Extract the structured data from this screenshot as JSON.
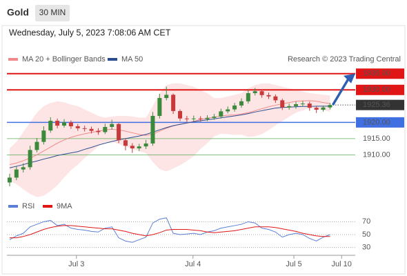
{
  "header": {
    "title": "Gold",
    "timeframe": "30 MIN",
    "timestamp": "Wednesday, July 5, 2023 7:08:06 AM CET"
  },
  "chart_data": [
    {
      "type": "candlestick",
      "attribution": "Research © 2023 Trading Central",
      "up_color": "#3b8a3b",
      "down_color": "#c83a3a",
      "band_color": "#fde0e0",
      "x": [
        0,
        1,
        2,
        3,
        4,
        5,
        6,
        7,
        8,
        9,
        10,
        11,
        12,
        13,
        14,
        15,
        16,
        17,
        18,
        19,
        20,
        21,
        22,
        23,
        24,
        25,
        26,
        27,
        28,
        29,
        30,
        31,
        32,
        33,
        34,
        35,
        36,
        37,
        38,
        39,
        40,
        41,
        42,
        43,
        44,
        45,
        46,
        47
      ],
      "open": [
        1901.5,
        1903.0,
        1905.5,
        1906.2,
        1911.5,
        1914.0,
        1917.5,
        1920.5,
        1919.0,
        1920.0,
        1918.8,
        1918.2,
        1918.0,
        1917.4,
        1917.0,
        1918.6,
        1919.5,
        1914.5,
        1912.8,
        1912.0,
        1912.6,
        1913.5,
        1922.0,
        1927.5,
        1928.5,
        1923.5,
        1921.2,
        1921.0,
        1921.2,
        1921.0,
        1921.4,
        1921.8,
        1923.4,
        1924.0,
        1925.2,
        1926.5,
        1929.0,
        1929.6,
        1928.4,
        1928.0,
        1926.8,
        1924.6,
        1925.0,
        1925.6,
        1925.8,
        1924.5,
        1923.9,
        1924.6
      ],
      "high": [
        1904.2,
        1906.6,
        1907.4,
        1912.8,
        1915.2,
        1918.8,
        1921.6,
        1921.2,
        1921.0,
        1920.6,
        1919.5,
        1919.0,
        1918.7,
        1918.2,
        1919.6,
        1920.8,
        1919.8,
        1915.2,
        1913.6,
        1913.4,
        1914.6,
        1923.2,
        1928.8,
        1931.0,
        1928.9,
        1924.0,
        1922.0,
        1922.1,
        1921.9,
        1922.2,
        1922.6,
        1924.2,
        1924.9,
        1926.0,
        1927.4,
        1930.0,
        1930.6,
        1930.2,
        1929.2,
        1928.6,
        1927.3,
        1925.8,
        1926.4,
        1926.6,
        1926.4,
        1924.9,
        1925.2,
        1926.0
      ],
      "low": [
        1900.3,
        1902.2,
        1904.6,
        1905.4,
        1910.8,
        1913.2,
        1916.8,
        1918.2,
        1918.4,
        1918.0,
        1917.4,
        1917.2,
        1916.6,
        1916.2,
        1916.4,
        1917.8,
        1913.6,
        1911.4,
        1910.6,
        1911.2,
        1911.8,
        1912.8,
        1921.2,
        1926.8,
        1922.6,
        1920.4,
        1920.2,
        1920.3,
        1920.2,
        1920.4,
        1920.8,
        1921.2,
        1922.8,
        1923.3,
        1924.5,
        1925.8,
        1928.3,
        1927.6,
        1927.2,
        1926.0,
        1923.8,
        1923.9,
        1924.2,
        1924.9,
        1923.6,
        1922.9,
        1923.3,
        1924.0
      ],
      "close": [
        1903.0,
        1905.5,
        1906.2,
        1911.5,
        1914.0,
        1917.5,
        1920.5,
        1919.0,
        1920.0,
        1918.8,
        1918.2,
        1918.0,
        1917.4,
        1917.0,
        1918.6,
        1919.5,
        1914.5,
        1912.8,
        1912.0,
        1912.6,
        1913.5,
        1922.0,
        1927.5,
        1928.5,
        1923.5,
        1921.2,
        1921.0,
        1921.2,
        1921.0,
        1921.4,
        1921.8,
        1923.4,
        1924.0,
        1925.2,
        1926.5,
        1929.0,
        1929.6,
        1928.4,
        1928.0,
        1926.8,
        1924.6,
        1925.0,
        1925.6,
        1925.8,
        1924.5,
        1923.9,
        1924.6,
        1925.36
      ],
      "series": [
        {
          "name": "MA 20 + Bollinger Bands",
          "color": "#f08a8a",
          "values": [
            1907.0,
            1907.5,
            1908.2,
            1909.0,
            1910.0,
            1911.2,
            1912.4,
            1913.6,
            1914.6,
            1915.4,
            1916.0,
            1916.5,
            1916.9,
            1917.3,
            1917.7,
            1917.9,
            1917.7,
            1917.3,
            1916.8,
            1916.3,
            1916.0,
            1916.4,
            1917.3,
            1918.2,
            1918.9,
            1919.4,
            1919.8,
            1920.3,
            1920.9,
            1921.3,
            1921.6,
            1922.0,
            1922.2,
            1922.3,
            1922.6,
            1923.0,
            1923.6,
            1924.2,
            1924.8,
            1925.3,
            1925.7,
            1926.1,
            1926.5,
            1926.6,
            1926.7,
            1926.5,
            1926.1,
            1925.8
          ],
          "upper": [
            1912,
            1914,
            1917,
            1920,
            1923,
            1925,
            1926,
            1926.5,
            1926.2,
            1925.5,
            1925,
            1924,
            1923,
            1922,
            1921.5,
            1921.8,
            1922,
            1922,
            1921.8,
            1921.5,
            1921.5,
            1925,
            1929,
            1931.5,
            1932,
            1932,
            1931.5,
            1931,
            1930,
            1929,
            1927.5,
            1927.5,
            1928,
            1928.5,
            1929,
            1930.5,
            1931.5,
            1932,
            1932,
            1931.5,
            1931,
            1930.5,
            1930,
            1929.5,
            1929,
            1928.8,
            1928.5,
            1928.3
          ],
          "lower": [
            1902,
            1901,
            1899.4,
            1898,
            1897,
            1897.4,
            1898.8,
            1900.7,
            1903,
            1905.3,
            1907,
            1909,
            1910.8,
            1912.6,
            1913.9,
            1914,
            1913.4,
            1912.6,
            1911.8,
            1911.1,
            1910.5,
            1907.8,
            1905.6,
            1904.9,
            1905.8,
            1906.8,
            1908.1,
            1909.6,
            1911.8,
            1913.6,
            1915.7,
            1916.5,
            1916.4,
            1916.1,
            1916.2,
            1915.5,
            1915.7,
            1916.4,
            1917.6,
            1919.1,
            1920.4,
            1921.7,
            1923.0,
            1923.7,
            1924.4,
            1924.2,
            1923.7,
            1923.3
          ]
        },
        {
          "name": "MA 50",
          "color": "#2a4d8f",
          "values": [
            1906.0,
            1906.5,
            1907.0,
            1907.6,
            1908.1,
            1908.7,
            1909.2,
            1909.8,
            1910.2,
            1910.6,
            1911.0,
            1911.7,
            1912.3,
            1913.0,
            1913.6,
            1914.1,
            1914.6,
            1915.0,
            1915.4,
            1915.8,
            1916.3,
            1917.0,
            1917.7,
            1918.4,
            1919.0,
            1919.4,
            1919.8,
            1920.2,
            1920.5,
            1920.8,
            1921.1,
            1921.4,
            1921.7,
            1922.0,
            1922.3,
            1922.7,
            1923.2,
            1923.6,
            1924.0,
            1924.4,
            1924.6,
            1924.7,
            1924.8,
            1924.9,
            1924.9,
            1925.0,
            1925.0,
            1925.0
          ]
        }
      ],
      "levels": [
        {
          "value": 1935,
          "label": "1935.00",
          "color": "#e01515",
          "filled": true
        },
        {
          "value": 1930,
          "label": "1930.00",
          "color": "#e01515",
          "filled": true
        },
        {
          "value": 1920,
          "label": "1920.00",
          "color": "#3f6fe0",
          "filled": true
        },
        {
          "value": 1915,
          "label": "1915.00",
          "color": "#2f9a2f",
          "filled": false
        },
        {
          "value": 1910,
          "label": "1910.00",
          "color": "#2f9a2f",
          "filled": false
        }
      ],
      "last_price": 1925.36,
      "last_color": "#333333",
      "ylim": [
        1896.5,
        1937.5
      ],
      "xlim": [
        -0.4,
        50.7
      ],
      "xticks": [
        {
          "value": 9.8,
          "label": "Jul 3"
        },
        {
          "value": 26.9,
          "label": "Jul 4"
        },
        {
          "value": 41.7,
          "label": "Jul 5"
        },
        {
          "value": 48.7,
          "label": "Jul 10"
        }
      ]
    },
    {
      "type": "line",
      "series": [
        {
          "name": "RSI",
          "color": "#5b7fd6",
          "values": [
            42,
            48,
            52,
            62,
            66,
            70,
            72,
            64,
            66,
            60,
            58,
            57,
            55,
            54,
            60,
            62,
            45,
            40,
            38,
            42,
            46,
            68,
            74,
            76,
            52,
            50,
            51,
            52,
            50,
            54,
            56,
            60,
            62,
            64,
            66,
            70,
            68,
            60,
            58,
            54,
            46,
            50,
            52,
            50,
            44,
            40,
            46,
            50
          ]
        },
        {
          "name": "9MA",
          "color": "#e01515",
          "values": [
            45,
            45,
            47,
            50,
            54,
            58,
            61,
            63,
            64,
            64,
            63,
            62,
            61,
            60,
            59,
            59,
            57,
            55,
            52,
            50,
            48,
            50,
            53,
            57,
            58,
            58,
            58,
            57,
            56,
            54,
            53,
            54,
            55,
            56,
            58,
            60,
            62,
            62,
            62,
            61,
            59,
            57,
            55,
            52,
            50,
            48,
            47,
            47
          ]
        }
      ],
      "ylim": [
        20,
        80
      ],
      "yticks": [
        70,
        50,
        30
      ]
    }
  ]
}
